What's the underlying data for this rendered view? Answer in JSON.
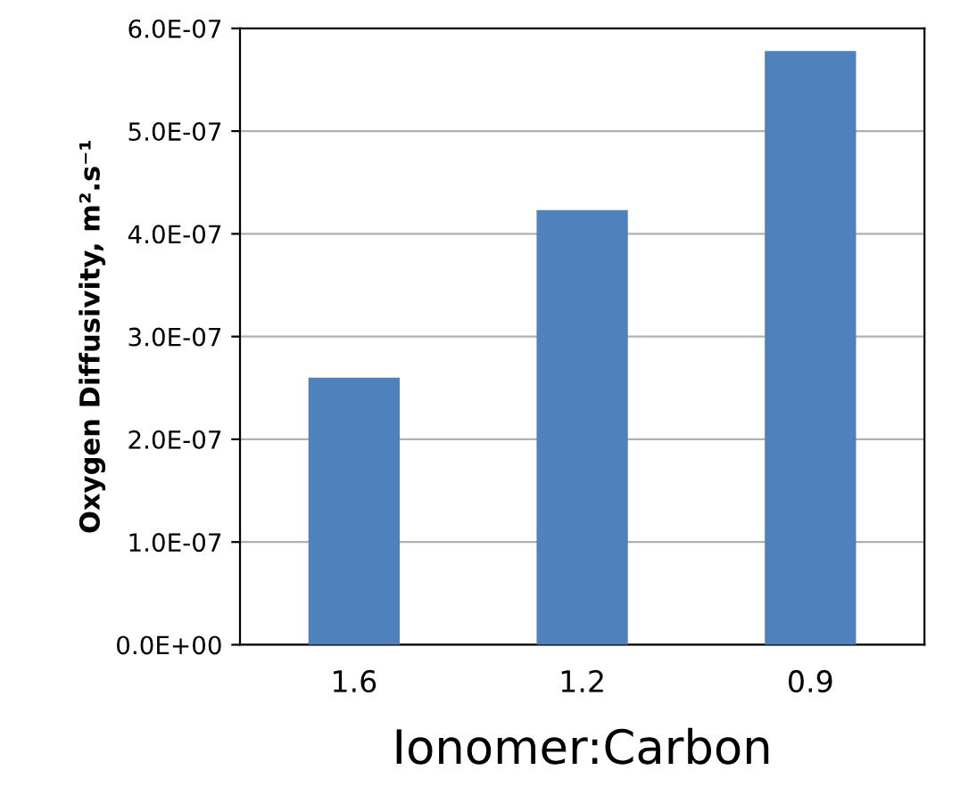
{
  "chart_data": {
    "type": "bar",
    "xlabel": "Ionomer:Carbon",
    "ylabel": "Oxygen Diffusivity, m².s⁻¹",
    "categories": [
      "1.6",
      "1.2",
      "0.9"
    ],
    "values": [
      2.6e-07,
      4.23e-07,
      5.78e-07
    ],
    "color": "#4f81bd",
    "ylim": [
      0,
      6e-07
    ],
    "yticks": [
      {
        "value": 0,
        "label": "0.0E+00"
      },
      {
        "value": 1e-07,
        "label": "1.0E-07"
      },
      {
        "value": 2e-07,
        "label": "2.0E-07"
      },
      {
        "value": 3e-07,
        "label": "3.0E-07"
      },
      {
        "value": 4e-07,
        "label": "4.0E-07"
      },
      {
        "value": 5e-07,
        "label": "5.0E-07"
      },
      {
        "value": 6e-07,
        "label": "6.0E-07"
      }
    ],
    "grid": "y"
  }
}
